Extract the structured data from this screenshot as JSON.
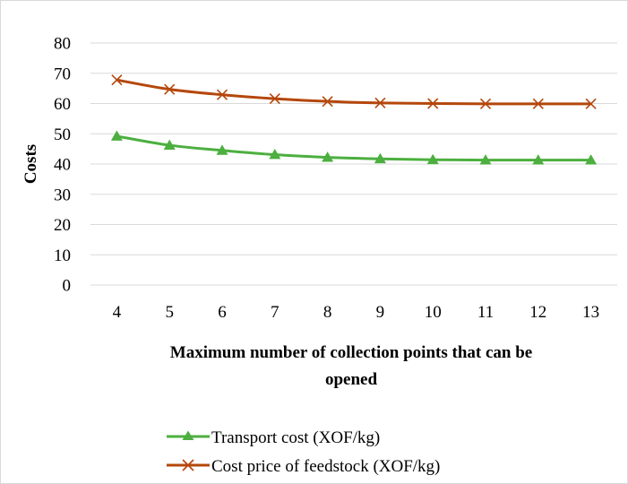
{
  "chart_data": {
    "type": "line",
    "categories": [
      "4",
      "5",
      "6",
      "7",
      "8",
      "9",
      "10",
      "11",
      "12",
      "13"
    ],
    "series": [
      {
        "name": "Transport cost (XOF/kg)",
        "color": "#4caf3f",
        "marker": "triangle",
        "values": [
          49.2,
          46.2,
          44.5,
          43.1,
          42.2,
          41.7,
          41.4,
          41.3,
          41.3,
          41.3
        ]
      },
      {
        "name": "Cost price of feedstock (XOF/kg)",
        "color": "#b5470b",
        "marker": "x",
        "values": [
          67.8,
          64.7,
          62.9,
          61.6,
          60.7,
          60.2,
          60.0,
          59.9,
          59.9,
          59.9
        ]
      }
    ],
    "title": "",
    "xlabel_lines": [
      "Maximum number of collection points that can be",
      "opened"
    ],
    "ylabel": "Costs",
    "ylim": [
      0,
      80
    ],
    "yticks": [
      0,
      10,
      20,
      30,
      40,
      50,
      60,
      70,
      80
    ],
    "grid": "horizontal",
    "legend_position": "bottom"
  }
}
